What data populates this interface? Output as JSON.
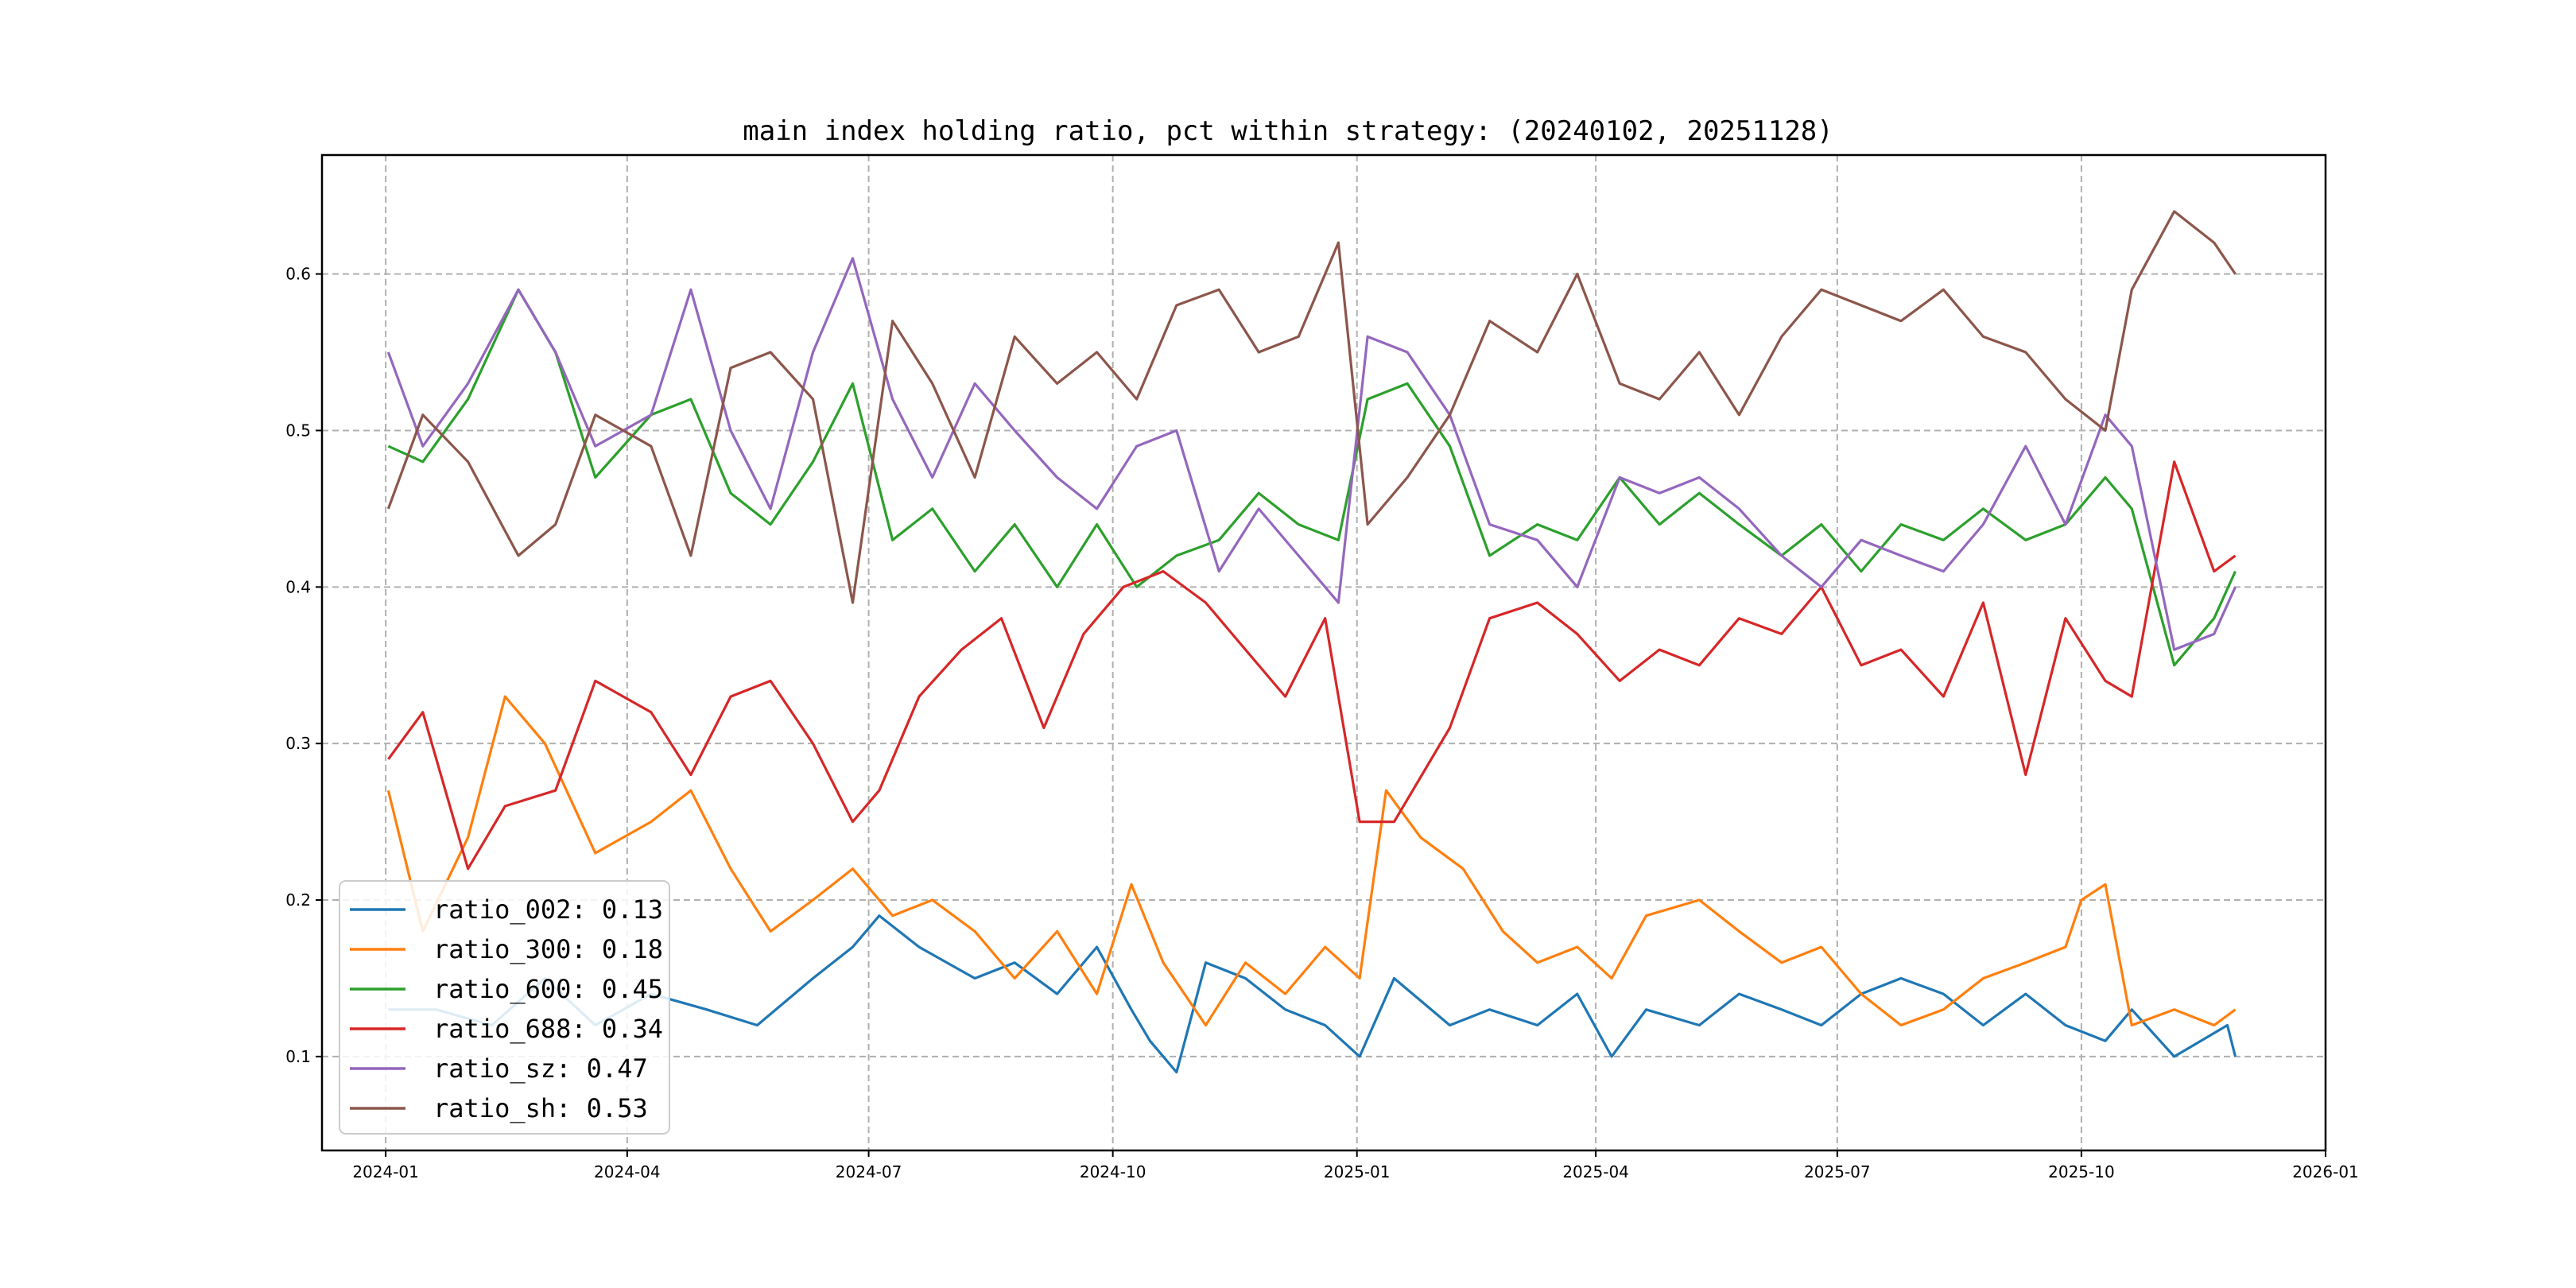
{
  "chart_data": {
    "type": "line",
    "title": "main index holding ratio, pct within strategy: (20240102, 20251128)",
    "xlabel": "",
    "ylabel": "",
    "x_range": [
      "2023-12-08",
      "2026-01-01"
    ],
    "ylim": [
      0.04,
      0.676
    ],
    "grid": true,
    "legend_position": "lower-left",
    "x_ticks": [
      {
        "date": "2024-01-01",
        "label": "2024-01"
      },
      {
        "date": "2024-04-01",
        "label": "2024-04"
      },
      {
        "date": "2024-07-01",
        "label": "2024-07"
      },
      {
        "date": "2024-10-01",
        "label": "2024-10"
      },
      {
        "date": "2025-01-01",
        "label": "2025-01"
      },
      {
        "date": "2025-04-01",
        "label": "2025-04"
      },
      {
        "date": "2025-07-01",
        "label": "2025-07"
      },
      {
        "date": "2025-10-01",
        "label": "2025-10"
      },
      {
        "date": "2026-01-01",
        "label": "2026-01"
      }
    ],
    "y_ticks": [
      {
        "value": 0.1,
        "label": "0.1"
      },
      {
        "value": 0.2,
        "label": "0.2"
      },
      {
        "value": 0.3,
        "label": "0.3"
      },
      {
        "value": 0.4,
        "label": "0.4"
      },
      {
        "value": 0.5,
        "label": "0.5"
      },
      {
        "value": 0.6,
        "label": "0.6"
      }
    ],
    "series": [
      {
        "name": "ratio_002",
        "legend_label": "ratio_002: 0.13",
        "color": "#1f77b4",
        "x": [
          "2024-01-02",
          "2024-01-20",
          "2024-02-10",
          "2024-03-01",
          "2024-03-20",
          "2024-04-10",
          "2024-05-01",
          "2024-05-20",
          "2024-06-10",
          "2024-06-25",
          "2024-07-05",
          "2024-07-20",
          "2024-08-10",
          "2024-08-25",
          "2024-09-10",
          "2024-09-25",
          "2024-10-08",
          "2024-10-15",
          "2024-10-25",
          "2024-11-05",
          "2024-11-20",
          "2024-12-05",
          "2024-12-20",
          "2025-01-02",
          "2025-01-15",
          "2025-02-05",
          "2025-02-20",
          "2025-03-10",
          "2025-03-25",
          "2025-04-07",
          "2025-04-20",
          "2025-05-10",
          "2025-05-25",
          "2025-06-10",
          "2025-06-25",
          "2025-07-10",
          "2025-07-25",
          "2025-08-10",
          "2025-08-25",
          "2025-09-10",
          "2025-09-25",
          "2025-10-10",
          "2025-10-20",
          "2025-11-05",
          "2025-11-15",
          "2025-11-25",
          "2025-11-28"
        ],
        "y": [
          0.13,
          0.13,
          0.12,
          0.15,
          0.12,
          0.14,
          0.13,
          0.12,
          0.15,
          0.17,
          0.19,
          0.17,
          0.15,
          0.16,
          0.14,
          0.17,
          0.13,
          0.11,
          0.09,
          0.16,
          0.15,
          0.13,
          0.12,
          0.1,
          0.15,
          0.12,
          0.13,
          0.12,
          0.14,
          0.1,
          0.13,
          0.12,
          0.14,
          0.13,
          0.12,
          0.14,
          0.15,
          0.14,
          0.12,
          0.14,
          0.12,
          0.11,
          0.13,
          0.1,
          0.11,
          0.12,
          0.1
        ]
      },
      {
        "name": "ratio_300",
        "legend_label": "ratio_300: 0.18",
        "color": "#ff7f0e",
        "x": [
          "2024-01-02",
          "2024-01-15",
          "2024-02-01",
          "2024-02-15",
          "2024-03-01",
          "2024-03-20",
          "2024-04-10",
          "2024-04-25",
          "2024-05-10",
          "2024-05-25",
          "2024-06-10",
          "2024-06-25",
          "2024-07-10",
          "2024-07-25",
          "2024-08-10",
          "2024-08-25",
          "2024-09-10",
          "2024-09-25",
          "2024-10-08",
          "2024-10-20",
          "2024-11-05",
          "2024-11-20",
          "2024-12-05",
          "2024-12-20",
          "2025-01-02",
          "2025-01-12",
          "2025-01-25",
          "2025-02-10",
          "2025-02-25",
          "2025-03-10",
          "2025-03-25",
          "2025-04-07",
          "2025-04-20",
          "2025-05-10",
          "2025-05-25",
          "2025-06-10",
          "2025-06-25",
          "2025-07-10",
          "2025-07-25",
          "2025-08-10",
          "2025-08-25",
          "2025-09-10",
          "2025-09-25",
          "2025-10-01",
          "2025-10-10",
          "2025-10-20",
          "2025-11-05",
          "2025-11-20",
          "2025-11-28"
        ],
        "y": [
          0.27,
          0.18,
          0.24,
          0.33,
          0.3,
          0.23,
          0.25,
          0.27,
          0.22,
          0.18,
          0.2,
          0.22,
          0.19,
          0.2,
          0.18,
          0.15,
          0.18,
          0.14,
          0.21,
          0.16,
          0.12,
          0.16,
          0.14,
          0.17,
          0.15,
          0.27,
          0.24,
          0.22,
          0.18,
          0.16,
          0.17,
          0.15,
          0.19,
          0.2,
          0.18,
          0.16,
          0.17,
          0.14,
          0.12,
          0.13,
          0.15,
          0.16,
          0.17,
          0.2,
          0.21,
          0.12,
          0.13,
          0.12,
          0.13
        ]
      },
      {
        "name": "ratio_600",
        "legend_label": "ratio_600: 0.45",
        "color": "#2ca02c",
        "x": [
          "2024-01-02",
          "2024-01-15",
          "2024-02-01",
          "2024-02-20",
          "2024-03-05",
          "2024-03-20",
          "2024-04-10",
          "2024-04-25",
          "2024-05-10",
          "2024-05-25",
          "2024-06-10",
          "2024-06-25",
          "2024-07-10",
          "2024-07-25",
          "2024-08-10",
          "2024-08-25",
          "2024-09-10",
          "2024-09-25",
          "2024-10-10",
          "2024-10-25",
          "2024-11-10",
          "2024-11-25",
          "2024-12-10",
          "2024-12-25",
          "2025-01-05",
          "2025-01-20",
          "2025-02-05",
          "2025-02-20",
          "2025-03-10",
          "2025-03-25",
          "2025-04-10",
          "2025-04-25",
          "2025-05-10",
          "2025-05-25",
          "2025-06-10",
          "2025-06-25",
          "2025-07-10",
          "2025-07-25",
          "2025-08-10",
          "2025-08-25",
          "2025-09-10",
          "2025-09-25",
          "2025-10-10",
          "2025-10-20",
          "2025-11-05",
          "2025-11-20",
          "2025-11-28"
        ],
        "y": [
          0.49,
          0.48,
          0.52,
          0.59,
          0.55,
          0.47,
          0.51,
          0.52,
          0.46,
          0.44,
          0.48,
          0.53,
          0.43,
          0.45,
          0.41,
          0.44,
          0.4,
          0.44,
          0.4,
          0.42,
          0.43,
          0.46,
          0.44,
          0.43,
          0.52,
          0.53,
          0.49,
          0.42,
          0.44,
          0.43,
          0.47,
          0.44,
          0.46,
          0.44,
          0.42,
          0.44,
          0.41,
          0.44,
          0.43,
          0.45,
          0.43,
          0.44,
          0.47,
          0.45,
          0.35,
          0.38,
          0.41
        ]
      },
      {
        "name": "ratio_688",
        "legend_label": "ratio_688: 0.34",
        "color": "#d62728",
        "x": [
          "2024-01-02",
          "2024-01-15",
          "2024-02-01",
          "2024-02-15",
          "2024-03-05",
          "2024-03-20",
          "2024-04-10",
          "2024-04-25",
          "2024-05-10",
          "2024-05-25",
          "2024-06-10",
          "2024-06-25",
          "2024-07-05",
          "2024-07-20",
          "2024-08-05",
          "2024-08-20",
          "2024-09-05",
          "2024-09-20",
          "2024-10-05",
          "2024-10-20",
          "2024-11-05",
          "2024-11-20",
          "2024-12-05",
          "2024-12-20",
          "2025-01-02",
          "2025-01-15",
          "2025-02-05",
          "2025-02-20",
          "2025-03-10",
          "2025-03-25",
          "2025-04-10",
          "2025-04-25",
          "2025-05-10",
          "2025-05-25",
          "2025-06-10",
          "2025-06-25",
          "2025-07-10",
          "2025-07-25",
          "2025-08-10",
          "2025-08-25",
          "2025-09-10",
          "2025-09-25",
          "2025-10-10",
          "2025-10-20",
          "2025-11-05",
          "2025-11-20",
          "2025-11-28"
        ],
        "y": [
          0.29,
          0.32,
          0.22,
          0.26,
          0.27,
          0.34,
          0.32,
          0.28,
          0.33,
          0.34,
          0.3,
          0.25,
          0.27,
          0.33,
          0.36,
          0.38,
          0.31,
          0.37,
          0.4,
          0.41,
          0.39,
          0.36,
          0.33,
          0.38,
          0.25,
          0.25,
          0.31,
          0.38,
          0.39,
          0.37,
          0.34,
          0.36,
          0.35,
          0.38,
          0.37,
          0.4,
          0.35,
          0.36,
          0.33,
          0.39,
          0.28,
          0.38,
          0.34,
          0.33,
          0.48,
          0.41,
          0.42
        ]
      },
      {
        "name": "ratio_sz",
        "legend_label": "ratio_sz: 0.47",
        "color": "#9467bd",
        "x": [
          "2024-01-02",
          "2024-01-15",
          "2024-02-01",
          "2024-02-20",
          "2024-03-05",
          "2024-03-20",
          "2024-04-10",
          "2024-04-25",
          "2024-05-10",
          "2024-05-25",
          "2024-06-10",
          "2024-06-25",
          "2024-07-10",
          "2024-07-25",
          "2024-08-10",
          "2024-08-25",
          "2024-09-10",
          "2024-09-25",
          "2024-10-10",
          "2024-10-25",
          "2024-11-10",
          "2024-11-25",
          "2024-12-10",
          "2024-12-25",
          "2025-01-05",
          "2025-01-20",
          "2025-02-05",
          "2025-02-20",
          "2025-03-10",
          "2025-03-25",
          "2025-04-10",
          "2025-04-25",
          "2025-05-10",
          "2025-05-25",
          "2025-06-10",
          "2025-06-25",
          "2025-07-10",
          "2025-07-25",
          "2025-08-10",
          "2025-08-25",
          "2025-09-10",
          "2025-09-25",
          "2025-10-10",
          "2025-10-20",
          "2025-11-05",
          "2025-11-20",
          "2025-11-28"
        ],
        "y": [
          0.55,
          0.49,
          0.53,
          0.59,
          0.55,
          0.49,
          0.51,
          0.59,
          0.5,
          0.45,
          0.55,
          0.61,
          0.52,
          0.47,
          0.53,
          0.5,
          0.47,
          0.45,
          0.49,
          0.5,
          0.41,
          0.45,
          0.42,
          0.39,
          0.56,
          0.55,
          0.51,
          0.44,
          0.43,
          0.4,
          0.47,
          0.46,
          0.47,
          0.45,
          0.42,
          0.4,
          0.43,
          0.42,
          0.41,
          0.44,
          0.49,
          0.44,
          0.51,
          0.49,
          0.36,
          0.37,
          0.4
        ]
      },
      {
        "name": "ratio_sh",
        "legend_label": "ratio_sh: 0.53",
        "color": "#8c564b",
        "x": [
          "2024-01-02",
          "2024-01-15",
          "2024-02-01",
          "2024-02-20",
          "2024-03-05",
          "2024-03-20",
          "2024-04-10",
          "2024-04-25",
          "2024-05-10",
          "2024-05-25",
          "2024-06-10",
          "2024-06-25",
          "2024-07-10",
          "2024-07-25",
          "2024-08-10",
          "2024-08-25",
          "2024-09-10",
          "2024-09-25",
          "2024-10-10",
          "2024-10-25",
          "2024-11-10",
          "2024-11-25",
          "2024-12-10",
          "2024-12-25",
          "2025-01-05",
          "2025-01-20",
          "2025-02-05",
          "2025-02-20",
          "2025-03-10",
          "2025-03-25",
          "2025-04-10",
          "2025-04-25",
          "2025-05-10",
          "2025-05-25",
          "2025-06-10",
          "2025-06-25",
          "2025-07-10",
          "2025-07-25",
          "2025-08-10",
          "2025-08-25",
          "2025-09-10",
          "2025-09-25",
          "2025-10-10",
          "2025-10-20",
          "2025-11-05",
          "2025-11-20",
          "2025-11-28"
        ],
        "y": [
          0.45,
          0.51,
          0.48,
          0.42,
          0.44,
          0.51,
          0.49,
          0.42,
          0.54,
          0.55,
          0.52,
          0.39,
          0.57,
          0.53,
          0.47,
          0.56,
          0.53,
          0.55,
          0.52,
          0.58,
          0.59,
          0.55,
          0.56,
          0.62,
          0.44,
          0.47,
          0.51,
          0.57,
          0.55,
          0.6,
          0.53,
          0.52,
          0.55,
          0.51,
          0.56,
          0.59,
          0.58,
          0.57,
          0.59,
          0.56,
          0.55,
          0.52,
          0.5,
          0.59,
          0.64,
          0.62,
          0.6
        ]
      }
    ]
  }
}
